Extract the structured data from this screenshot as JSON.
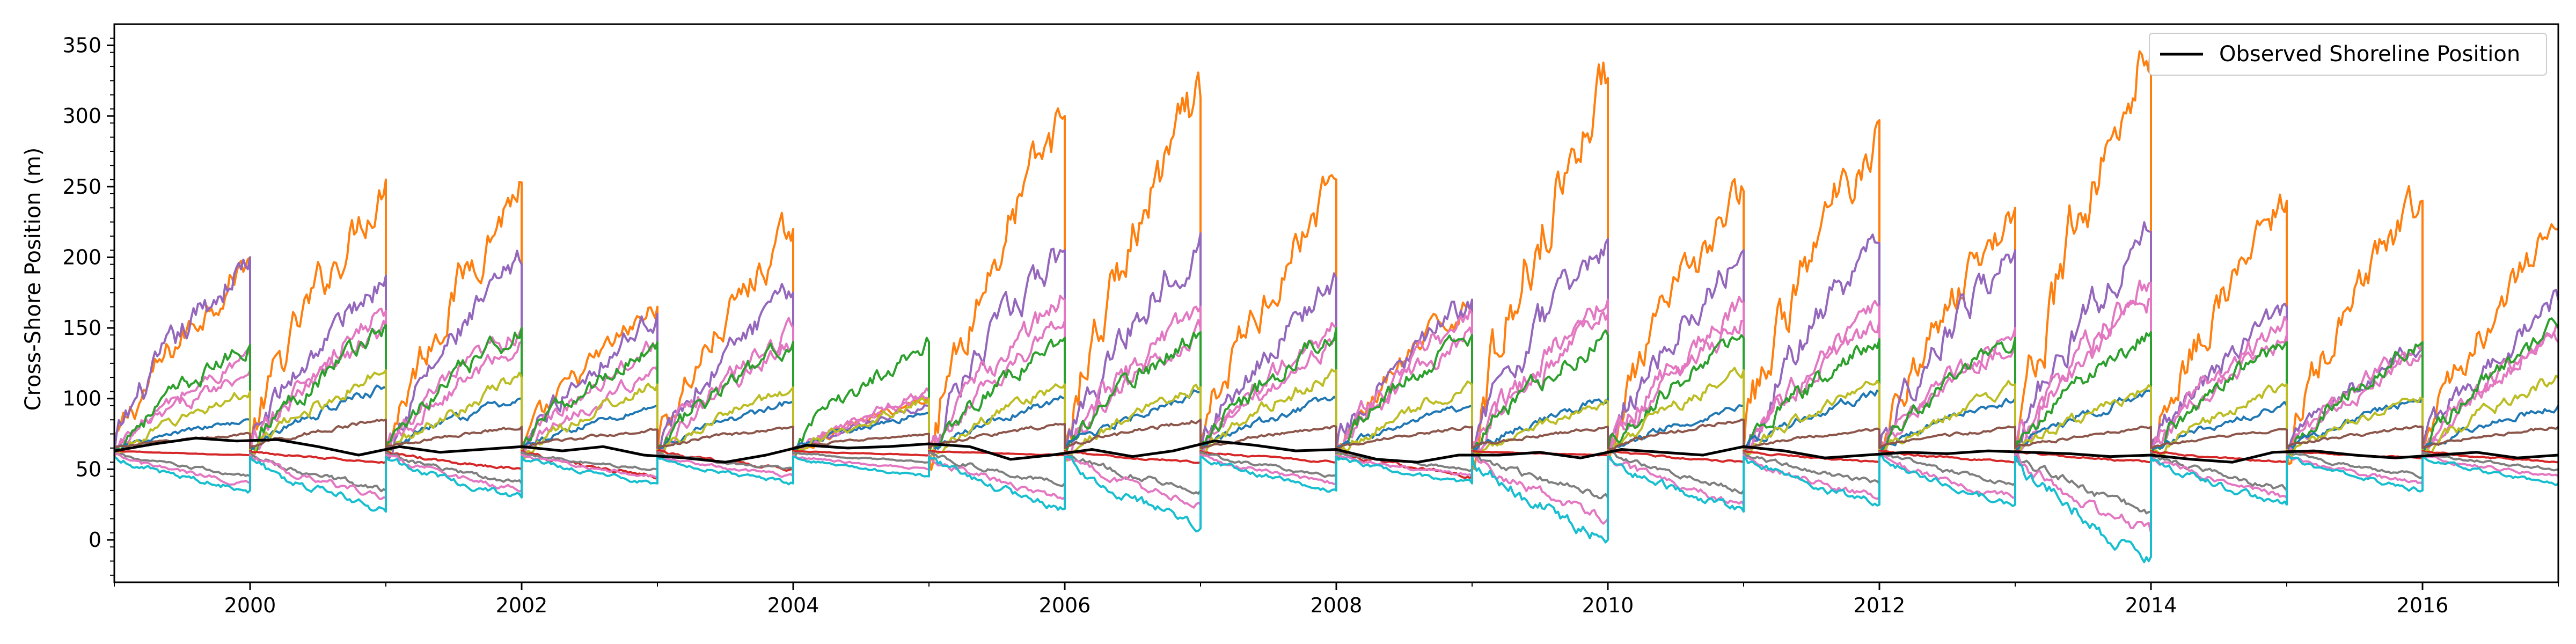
{
  "chart_data": {
    "type": "line",
    "title": "",
    "xlabel": "",
    "ylabel": "Cross-Shore Position (m)",
    "xlim": [
      1999.0,
      2017.0
    ],
    "ylim": [
      -30,
      365
    ],
    "x_ticks": [
      2000,
      2002,
      2004,
      2006,
      2008,
      2010,
      2012,
      2014,
      2016
    ],
    "x_tick_labels": [
      "2000",
      "2002",
      "2004",
      "2006",
      "2008",
      "2010",
      "2012",
      "2014",
      "2016"
    ],
    "y_ticks": [
      0,
      50,
      100,
      150,
      200,
      250,
      300,
      350
    ],
    "y_tick_labels": [
      "0",
      "50",
      "100",
      "150",
      "200",
      "250",
      "300",
      "350"
    ],
    "grid": false,
    "legend": {
      "position": "top-right",
      "entries": [
        "Observed Shoreline Position"
      ]
    },
    "observed_series": {
      "name": "Observed Shoreline Position",
      "color": "#000000",
      "x": [
        1999.0,
        1999.3,
        1999.6,
        1999.9,
        2000.2,
        2000.5,
        2000.8,
        2001.1,
        2001.4,
        2001.7,
        2002.0,
        2002.3,
        2002.6,
        2002.9,
        2003.2,
        2003.5,
        2003.8,
        2004.1,
        2004.4,
        2004.7,
        2005.0,
        2005.3,
        2005.6,
        2005.9,
        2006.2,
        2006.5,
        2006.8,
        2007.1,
        2007.4,
        2007.7,
        2008.0,
        2008.3,
        2008.6,
        2008.9,
        2009.2,
        2009.5,
        2009.8,
        2010.1,
        2010.4,
        2010.7,
        2011.0,
        2011.3,
        2011.6,
        2011.9,
        2012.2,
        2012.5,
        2012.8,
        2013.1,
        2013.4,
        2013.7,
        2014.0,
        2014.3,
        2014.6,
        2014.9,
        2015.2,
        2015.5,
        2015.8,
        2016.1,
        2016.4,
        2016.7,
        2017.0
      ],
      "y": [
        63,
        68,
        72,
        70,
        71,
        66,
        60,
        66,
        62,
        64,
        66,
        63,
        66,
        60,
        58,
        55,
        60,
        67,
        65,
        66,
        68,
        66,
        57,
        60,
        64,
        59,
        63,
        70,
        67,
        63,
        64,
        57,
        55,
        60,
        60,
        62,
        58,
        64,
        62,
        60,
        66,
        63,
        58,
        60,
        62,
        61,
        63,
        62,
        61,
        59,
        60,
        57,
        55,
        62,
        63,
        60,
        58,
        60,
        62,
        58,
        60
      ]
    },
    "model_envelopes": [
      {
        "color": "#ff7f0e",
        "start": 60,
        "peaks": [
          200,
          255,
          253,
          165,
          220,
          100,
          300,
          313,
          255,
          170,
          327,
          247,
          297,
          235,
          350,
          240,
          240,
          220
        ]
      },
      {
        "color": "#9467bd",
        "start": 62,
        "peaks": [
          200,
          187,
          195,
          160,
          175,
          95,
          205,
          217,
          185,
          170,
          213,
          205,
          210,
          205,
          218,
          165,
          140,
          170
        ]
      },
      {
        "color": "#e377c2",
        "start": 61,
        "peaks": [
          130,
          162,
          150,
          140,
          150,
          105,
          170,
          165,
          150,
          160,
          170,
          168,
          165,
          150,
          182,
          155,
          140,
          150
        ]
      },
      {
        "color": "#e377c2",
        "start": 60,
        "peaks": [
          120,
          150,
          140,
          120,
          140,
          100,
          155,
          150,
          140,
          145,
          160,
          155,
          155,
          140,
          170,
          145,
          130,
          140
        ]
      },
      {
        "color": "#2ca02c",
        "start": 62,
        "peaks": [
          138,
          152,
          150,
          140,
          140,
          140,
          143,
          147,
          150,
          145,
          145,
          143,
          142,
          143,
          147,
          140,
          140,
          150
        ]
      },
      {
        "color": "#1f77b4",
        "start": 63,
        "peaks": [
          85,
          108,
          100,
          95,
          98,
          90,
          100,
          105,
          100,
          95,
          100,
          95,
          105,
          100,
          105,
          95,
          100,
          95
        ]
      },
      {
        "color": "#bcbd22",
        "start": 58,
        "peaks": [
          105,
          120,
          115,
          110,
          108,
          100,
          110,
          108,
          120,
          110,
          98,
          120,
          110,
          110,
          108,
          110,
          100,
          115
        ]
      },
      {
        "color": "#8c564b",
        "start": 65,
        "peaks": [
          75,
          85,
          80,
          78,
          80,
          75,
          82,
          85,
          80,
          80,
          80,
          85,
          78,
          80,
          80,
          78,
          80,
          80
        ]
      },
      {
        "color": "#d62728",
        "start": 63,
        "peaks": [
          60,
          55,
          50,
          45,
          50,
          60,
          60,
          55,
          55,
          45,
          60,
          55,
          55,
          55,
          55,
          55,
          58,
          55
        ]
      },
      {
        "color": "#7f7f7f",
        "start": 62,
        "peaks": [
          45,
          35,
          40,
          50,
          50,
          55,
          40,
          35,
          45,
          50,
          30,
          35,
          40,
          40,
          20,
          35,
          45,
          50
        ]
      },
      {
        "color": "#e377c2",
        "start": 60,
        "peaks": [
          40,
          30,
          35,
          45,
          45,
          50,
          30,
          25,
          40,
          45,
          15,
          25,
          30,
          30,
          5,
          30,
          40,
          45
        ]
      },
      {
        "color": "#17becf",
        "start": 59,
        "peaks": [
          35,
          20,
          30,
          40,
          40,
          45,
          22,
          8,
          35,
          40,
          0,
          20,
          25,
          25,
          -12,
          25,
          35,
          40
        ]
      }
    ]
  }
}
